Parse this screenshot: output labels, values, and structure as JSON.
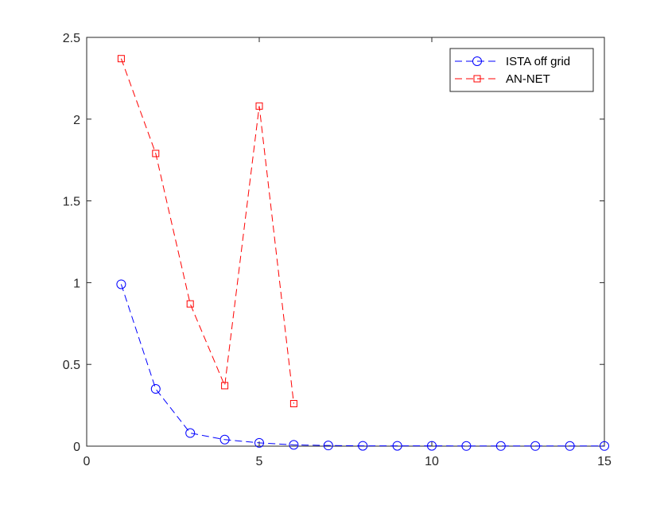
{
  "chart_data": {
    "type": "line",
    "title": "",
    "xlabel": "",
    "ylabel": "",
    "xlim": [
      0,
      15
    ],
    "ylim": [
      0,
      2.5
    ],
    "xticks": [
      0,
      5,
      10,
      15
    ],
    "yticks": [
      0,
      0.5,
      1,
      1.5,
      2,
      2.5
    ],
    "xtick_labels": [
      "0",
      "5",
      "10",
      "15"
    ],
    "ytick_labels": [
      "0",
      "0.5",
      "1",
      "1.5",
      "2",
      "2.5"
    ],
    "grid": false,
    "legend_position": "top-right",
    "series": [
      {
        "name": "ISTA off grid",
        "color": "#0000ff",
        "marker": "circle",
        "line_style": "dashed",
        "x": [
          1,
          2,
          3,
          4,
          5,
          6,
          7,
          8,
          9,
          10,
          11,
          12,
          13,
          14,
          15
        ],
        "y": [
          0.99,
          0.35,
          0.08,
          0.04,
          0.02,
          0.008,
          0.004,
          0.002,
          0.002,
          0.002,
          0.001,
          0.001,
          0.001,
          0.001,
          0.001
        ]
      },
      {
        "name": "AN-NET",
        "color": "#ff0000",
        "marker": "square",
        "line_style": "dashed",
        "x": [
          1,
          2,
          3,
          4,
          5,
          6
        ],
        "y": [
          2.37,
          1.79,
          0.87,
          0.37,
          2.08,
          0.26
        ]
      }
    ]
  }
}
